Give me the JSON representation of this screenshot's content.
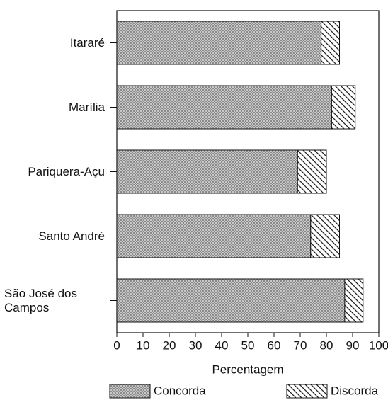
{
  "chart_data": {
    "type": "stacked_barh",
    "categories": [
      "Itararé",
      "Marília",
      "Pariquera-Açu",
      "Santo André",
      "São José dos Campos"
    ],
    "series": [
      {
        "name": "Concorda",
        "color": "#8a8a8a",
        "values": [
          78,
          82,
          69,
          74,
          87
        ]
      },
      {
        "name": "Discorda",
        "color": "#222222",
        "values": [
          7,
          9,
          11,
          11,
          7
        ]
      }
    ],
    "xlabel": "Percentagem",
    "xlim": [
      0,
      100
    ],
    "xticks": [
      0,
      10,
      20,
      30,
      40,
      50,
      60,
      70,
      80,
      90,
      100
    ]
  }
}
